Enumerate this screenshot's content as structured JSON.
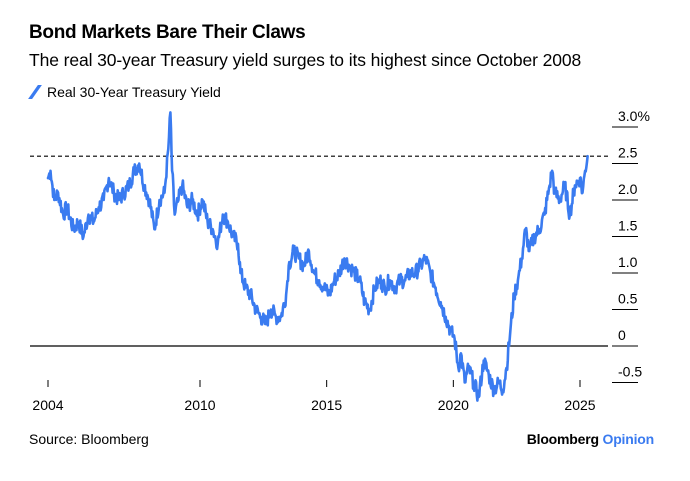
{
  "header": {
    "title": "Bond Markets Bare Their Claws",
    "subtitle": "The real 30-year Treasury yield surges to its highest since October 2008"
  },
  "footer": {
    "source": "Source: Bloomberg",
    "brand_main": "Bloomberg",
    "brand_accent": "Opinion"
  },
  "colors": {
    "series": "#3a7bf0",
    "axis": "#000000"
  },
  "chart_data": {
    "type": "line",
    "title": "Bond Markets Bare Their Claws",
    "subtitle": "The real 30-year Treasury yield surges to its highest since October 2008",
    "xlabel": "",
    "ylabel": "",
    "xlim": [
      2004,
      2025.5
    ],
    "ylim": [
      -0.8,
      3.1
    ],
    "x_ticks": [
      2004,
      2010,
      2015,
      2020,
      2025
    ],
    "x_tick_labels": [
      "2004",
      "2010",
      "2015",
      "2020",
      "2025"
    ],
    "y_ticks": [
      -0.5,
      0,
      0.5,
      1.0,
      1.5,
      2.0,
      2.5,
      3.0
    ],
    "y_tick_labels": [
      "-0.5",
      "0",
      "0.5",
      "1.0",
      "1.5",
      "2.0",
      "2.5",
      "3.0%"
    ],
    "reference_line": {
      "value": 2.6,
      "style": "dashed"
    },
    "zero_line": 0,
    "legend": {
      "position": "top-left",
      "entries": [
        "Real 30-Year Treasury Yield"
      ]
    },
    "series": [
      {
        "name": "Real 30-Year Treasury Yield",
        "x": [
          2004.0,
          2004.1,
          2004.25,
          2004.4,
          2004.6,
          2004.75,
          2005.0,
          2005.2,
          2005.4,
          2005.6,
          2005.8,
          2006.0,
          2006.2,
          2006.4,
          2006.6,
          2006.8,
          2007.0,
          2007.2,
          2007.4,
          2007.6,
          2007.8,
          2008.0,
          2008.2,
          2008.4,
          2008.6,
          2008.75,
          2008.83,
          2008.9,
          2009.0,
          2009.15,
          2009.3,
          2009.5,
          2009.7,
          2009.9,
          2010.1,
          2010.3,
          2010.5,
          2010.7,
          2010.9,
          2011.1,
          2011.3,
          2011.5,
          2011.6,
          2011.8,
          2012.0,
          2012.2,
          2012.4,
          2012.6,
          2012.8,
          2013.0,
          2013.2,
          2013.4,
          2013.5,
          2013.7,
          2013.9,
          2014.1,
          2014.3,
          2014.5,
          2014.7,
          2014.9,
          2015.1,
          2015.3,
          2015.5,
          2015.7,
          2015.9,
          2016.1,
          2016.3,
          2016.5,
          2016.7,
          2016.9,
          2017.1,
          2017.3,
          2017.5,
          2017.7,
          2017.9,
          2018.1,
          2018.3,
          2018.5,
          2018.7,
          2018.9,
          2019.1,
          2019.3,
          2019.5,
          2019.7,
          2019.9,
          2020.05,
          2020.2,
          2020.3,
          2020.45,
          2020.6,
          2020.8,
          2021.0,
          2021.2,
          2021.4,
          2021.6,
          2021.8,
          2021.95,
          2022.1,
          2022.25,
          2022.4,
          2022.55,
          2022.7,
          2022.85,
          2023.0,
          2023.2,
          2023.4,
          2023.6,
          2023.8,
          2023.9,
          2024.0,
          2024.2,
          2024.4,
          2024.6,
          2024.8,
          2025.0,
          2025.1,
          2025.2,
          2025.3
        ],
        "values": [
          2.3,
          2.4,
          2.0,
          2.1,
          1.8,
          1.9,
          1.6,
          1.7,
          1.5,
          1.8,
          1.7,
          1.9,
          2.0,
          2.3,
          2.1,
          2.0,
          2.1,
          2.2,
          2.4,
          2.5,
          2.2,
          2.0,
          1.6,
          2.0,
          2.1,
          2.7,
          3.2,
          2.4,
          1.8,
          2.0,
          2.2,
          1.9,
          2.0,
          1.8,
          2.0,
          1.7,
          1.6,
          1.4,
          1.8,
          1.7,
          1.5,
          1.4,
          1.0,
          0.8,
          0.7,
          0.5,
          0.4,
          0.3,
          0.5,
          0.4,
          0.4,
          0.7,
          1.1,
          1.3,
          1.2,
          1.1,
          1.3,
          1.0,
          0.9,
          0.8,
          0.7,
          0.9,
          1.0,
          1.2,
          1.1,
          1.0,
          0.9,
          0.6,
          0.5,
          0.8,
          0.9,
          0.8,
          0.9,
          0.8,
          0.9,
          0.9,
          1.0,
          1.0,
          1.1,
          1.2,
          1.0,
          0.8,
          0.6,
          0.4,
          0.2,
          0.1,
          -0.3,
          -0.1,
          -0.5,
          -0.3,
          -0.5,
          -0.7,
          -0.2,
          -0.4,
          -0.6,
          -0.5,
          -0.6,
          -0.3,
          0.2,
          0.7,
          0.9,
          1.2,
          1.6,
          1.3,
          1.5,
          1.6,
          1.8,
          2.2,
          2.4,
          2.1,
          2.0,
          2.2,
          1.8,
          2.2,
          2.3,
          2.1,
          2.4,
          2.6
        ]
      }
    ]
  }
}
